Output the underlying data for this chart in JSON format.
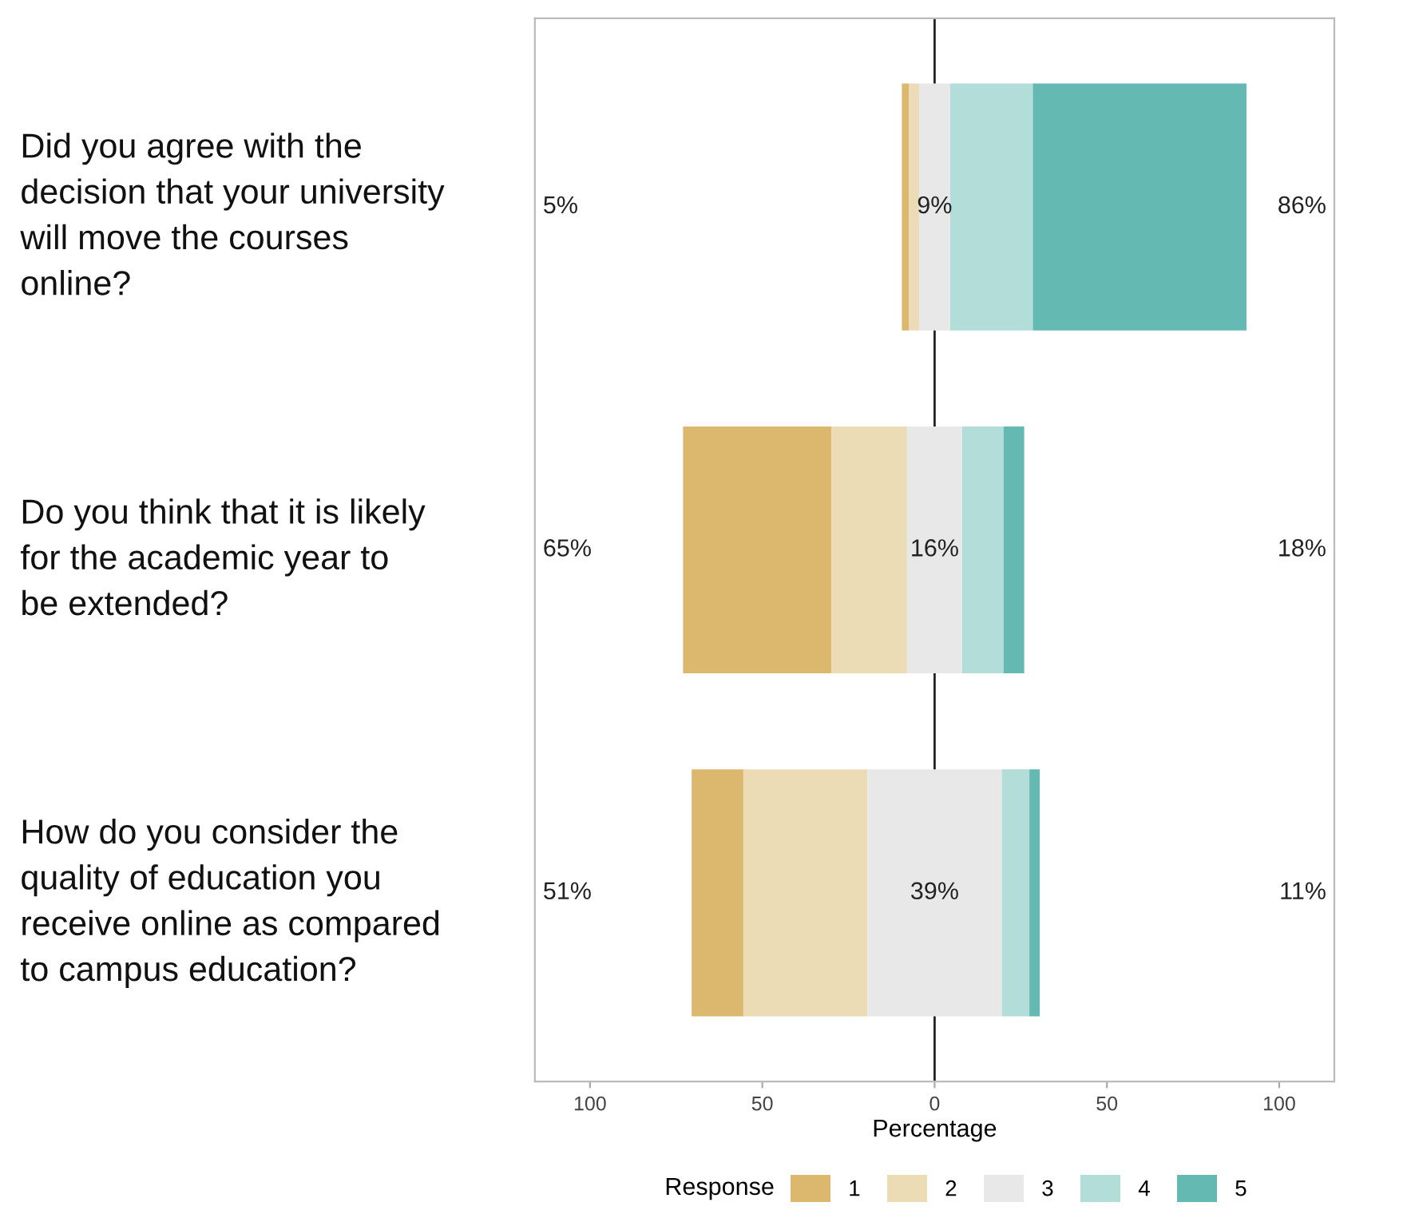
{
  "chart_data": {
    "type": "bar",
    "orientation": "horizontal",
    "xlabel": "Percentage",
    "legend_title": "Response",
    "legend": "bottom",
    "grid": false,
    "categories": [
      "Did you agree with the\ndecision that your university\nwill move the courses\nonline?",
      "Do you think that it is likely\nfor the academic year to\nbe extended?",
      "How do you consider the\nquality of education you\nreceive online as compared\nto campus education?"
    ],
    "series": [
      {
        "name": "1",
        "color": "#dbb86e",
        "values": [
          2,
          43,
          15
        ],
        "base": [
          -9.5,
          -73,
          -70.5
        ]
      },
      {
        "name": "2",
        "color": "#ecdcb6",
        "values": [
          3,
          22,
          36
        ],
        "base": [
          -7.5,
          -30,
          -55.5
        ]
      },
      {
        "name": "3",
        "color": "#e8e8e8",
        "values": [
          9,
          16,
          39
        ],
        "base": [
          -4.5,
          -8,
          -19.5
        ]
      },
      {
        "name": "4",
        "color": "#b3ddd8",
        "values": [
          24,
          12,
          8
        ],
        "base": [
          4.5,
          8,
          19.5
        ]
      },
      {
        "name": "5",
        "color": "#64bab3",
        "values": [
          62,
          6,
          3
        ],
        "base": [
          28.5,
          20,
          27.5
        ]
      }
    ],
    "xlim": [
      -116,
      116
    ],
    "xticks": [
      {
        "value": -100,
        "label": "100"
      },
      {
        "value": -50,
        "label": "50"
      },
      0,
      50,
      100
    ],
    "ref_lines": [
      {
        "axis": "x",
        "value": 0,
        "color": "#222222"
      }
    ],
    "annotations": [
      "5%",
      "9%",
      "86%",
      "65%",
      "16%",
      "18%",
      "51%",
      "39%",
      "11%"
    ]
  }
}
